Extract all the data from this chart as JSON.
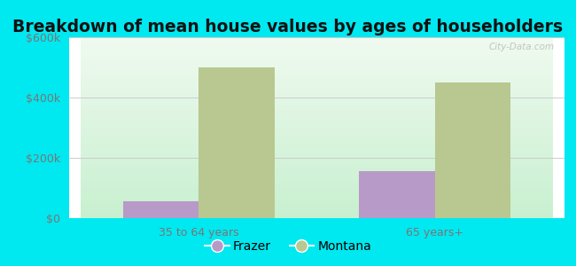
{
  "title": "Breakdown of mean house values by ages of householders",
  "categories": [
    "35 to 64 years",
    "65 years+"
  ],
  "frazer_values": [
    55000,
    155000
  ],
  "montana_values": [
    500000,
    450000
  ],
  "frazer_color": "#b89ac8",
  "montana_color": "#b8c890",
  "background_color": "#00e8f0",
  "ylim": [
    0,
    600000
  ],
  "yticks": [
    0,
    200000,
    400000,
    600000
  ],
  "ytick_labels": [
    "$0",
    "$200k",
    "$400k",
    "$600k"
  ],
  "legend_labels": [
    "Frazer",
    "Montana"
  ],
  "bar_width": 0.32,
  "title_fontsize": 13.5,
  "tick_fontsize": 9,
  "legend_fontsize": 10
}
